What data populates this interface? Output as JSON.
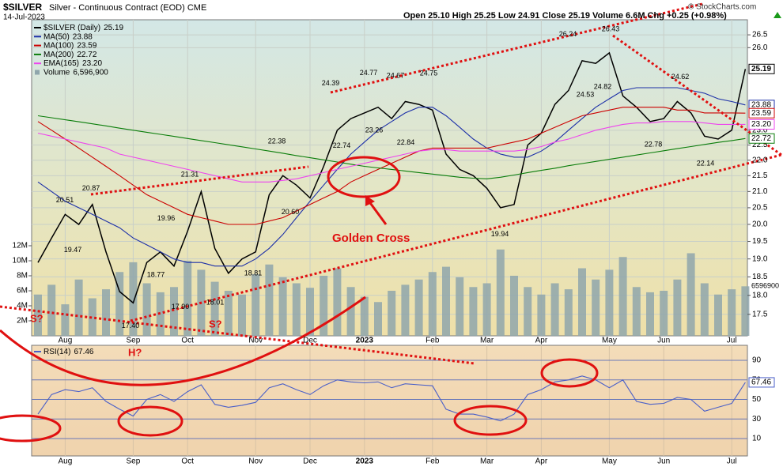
{
  "chart_data": [
    {
      "type": "line",
      "title": "$SILVER",
      "subtitle": "Silver - Continuous Contract (EOD) CME",
      "date": "14-Jul-2023",
      "quote": "Open 25.10  High 25.25  Low 24.91  Close 25.19  Volume 6.6M  Chg +0.25 (+0.98%)",
      "credit": "© StockCharts.com",
      "log_scale": true,
      "grid": true,
      "categories": [
        null,
        null,
        "Aug",
        null,
        null,
        null,
        null,
        "Sep",
        null,
        null,
        null,
        "Oct",
        null,
        null,
        null,
        null,
        "Nov",
        null,
        null,
        null,
        "Dec",
        null,
        null,
        null,
        "2023",
        null,
        null,
        null,
        null,
        "Feb",
        null,
        null,
        null,
        "Mar",
        null,
        null,
        null,
        "Apr",
        null,
        null,
        null,
        null,
        "May",
        null,
        null,
        null,
        "Jun",
        null,
        null,
        null,
        null,
        "Jul",
        null
      ],
      "ylim": [
        16.95,
        27.1
      ],
      "yticks": [
        17.5,
        {
          "value": 18,
          "label": "18.0"
        },
        18.5,
        {
          "value": 19,
          "label": "19.0"
        },
        19.5,
        {
          "value": 20,
          "label": "20.0"
        },
        20.5,
        {
          "value": 21,
          "label": "21.0"
        },
        21.5,
        {
          "value": 22,
          "label": "22.0"
        },
        22.5,
        {
          "value": 23,
          "label": "23.0"
        },
        {
          "value": 26,
          "label": "26.0"
        },
        26.5
      ],
      "y2lim": [
        0,
        42100000
      ],
      "y2ticks": [
        {
          "value": 2000000,
          "label": "2M"
        },
        {
          "value": 4000000,
          "label": "4M"
        },
        {
          "value": 6000000,
          "label": "6M"
        },
        {
          "value": 8000000,
          "label": "8M"
        },
        {
          "value": 10000000,
          "label": "10M"
        },
        {
          "value": 12000000,
          "label": "12M"
        }
      ],
      "series": [
        {
          "name": "$SILVER (Daily)",
          "last_label": "25.19",
          "color": "#000000",
          "values": [
            18.9,
            19.6,
            20.3,
            20.0,
            20.6,
            19.2,
            18.1,
            17.8,
            18.9,
            19.2,
            18.8,
            19.8,
            21.0,
            19.3,
            18.6,
            19.0,
            19.2,
            20.9,
            21.5,
            21.2,
            20.8,
            21.8,
            23.0,
            23.4,
            23.6,
            23.8,
            23.4,
            24.0,
            23.9,
            23.7,
            22.2,
            21.7,
            21.5,
            21.1,
            20.5,
            20.6,
            22.5,
            22.9,
            23.9,
            24.4,
            25.5,
            25.4,
            25.8,
            24.2,
            23.8,
            23.3,
            23.4,
            24.0,
            23.6,
            22.8,
            22.7,
            23.0,
            25.19
          ]
        },
        {
          "name": "MA(50)",
          "last_label": "23.88",
          "color": "#1c2fa8",
          "values": [
            21.3,
            21.0,
            20.7,
            20.5,
            20.3,
            20.1,
            19.9,
            19.6,
            19.4,
            19.2,
            19.0,
            18.9,
            18.9,
            18.8,
            18.8,
            18.8,
            19.0,
            19.3,
            19.7,
            20.2,
            20.7,
            21.2,
            21.7,
            22.2,
            22.6,
            23.0,
            23.3,
            23.6,
            23.8,
            23.8,
            23.5,
            23.1,
            22.7,
            22.4,
            22.2,
            22.1,
            22.1,
            22.3,
            22.6,
            23.0,
            23.4,
            23.8,
            24.1,
            24.4,
            24.5,
            24.5,
            24.5,
            24.5,
            24.4,
            24.3,
            24.1,
            24.0,
            23.88
          ]
        },
        {
          "name": "MA(100)",
          "last_label": "23.59",
          "color": "#cc0000",
          "values": [
            23.3,
            23.0,
            22.7,
            22.4,
            22.1,
            21.8,
            21.5,
            21.2,
            20.9,
            20.7,
            20.5,
            20.3,
            20.2,
            20.1,
            20.0,
            20.0,
            20.0,
            20.1,
            20.2,
            20.4,
            20.6,
            20.8,
            21.0,
            21.3,
            21.5,
            21.7,
            21.9,
            22.1,
            22.3,
            22.4,
            22.4,
            22.4,
            22.4,
            22.4,
            22.5,
            22.6,
            22.7,
            22.9,
            23.1,
            23.3,
            23.5,
            23.6,
            23.7,
            23.8,
            23.8,
            23.8,
            23.8,
            23.7,
            23.7,
            23.6,
            23.6,
            23.6,
            23.59
          ]
        },
        {
          "name": "MA(200)",
          "last_label": "22.72",
          "color": "#0a7d0a",
          "values": [
            23.5,
            23.43,
            23.36,
            23.29,
            23.22,
            23.15,
            23.07,
            23.0,
            22.93,
            22.86,
            22.79,
            22.72,
            22.65,
            22.58,
            22.51,
            22.44,
            22.37,
            22.3,
            22.23,
            22.15,
            22.08,
            22.01,
            21.94,
            21.87,
            21.8,
            21.75,
            21.7,
            21.65,
            21.6,
            21.55,
            21.5,
            21.45,
            21.42,
            21.4,
            21.45,
            21.52,
            21.6,
            21.67,
            21.74,
            21.82,
            21.89,
            21.96,
            22.03,
            22.1,
            22.17,
            22.24,
            22.31,
            22.38,
            22.45,
            22.52,
            22.59,
            22.65,
            22.72
          ]
        },
        {
          "name": "EMA(165)",
          "last_label": "23.20",
          "color": "#ee44ee",
          "values": [
            22.9,
            22.8,
            22.7,
            22.6,
            22.5,
            22.4,
            22.2,
            22.1,
            22.0,
            21.9,
            21.8,
            21.7,
            21.6,
            21.5,
            21.4,
            21.3,
            21.3,
            21.3,
            21.35,
            21.4,
            21.5,
            21.6,
            21.7,
            21.8,
            21.9,
            22.0,
            22.1,
            22.2,
            22.3,
            22.35,
            22.35,
            22.3,
            22.3,
            22.3,
            22.3,
            22.3,
            22.35,
            22.45,
            22.6,
            22.7,
            22.85,
            23.0,
            23.1,
            23.2,
            23.25,
            23.25,
            23.3,
            23.3,
            23.3,
            23.25,
            23.2,
            23.2,
            23.2
          ]
        },
        {
          "name": "Volume",
          "last_label": "6,596,900",
          "color": "#8fa6ac",
          "type": "bar",
          "axis": "y2",
          "values": [
            5500000,
            6800000,
            4200000,
            7500000,
            5000000,
            6200000,
            8500000,
            9800000,
            7000000,
            5800000,
            6500000,
            10000000,
            8800000,
            7200000,
            6000000,
            5500000,
            8200000,
            9500000,
            7800000,
            7000000,
            6400000,
            8000000,
            9000000,
            6500000,
            5200000,
            4500000,
            6000000,
            6800000,
            7500000,
            8500000,
            9200000,
            7800000,
            6500000,
            7000000,
            11500000,
            8000000,
            6500000,
            5500000,
            7000000,
            6200000,
            9000000,
            7500000,
            8800000,
            10500000,
            6500000,
            5800000,
            6000000,
            7500000,
            11000000,
            7000000,
            5500000,
            6200000,
            6596900
          ]
        }
      ],
      "peak_labels": [
        {
          "value": 20.51,
          "label": "20.51"
        },
        {
          "value": 20.87,
          "label": "20.87"
        },
        {
          "value": 19.47,
          "label": "19.47"
        },
        {
          "value": 17.4,
          "label": "17.40"
        },
        {
          "value": 19.96,
          "label": "19.96"
        },
        {
          "value": 21.31,
          "label": "21.31"
        },
        {
          "value": 18.77,
          "label": "18.77"
        },
        {
          "value": 17.9,
          "label": "17.90"
        },
        {
          "value": 18.01,
          "label": "18.01"
        },
        {
          "value": 22.38,
          "label": "22.38"
        },
        {
          "value": 20.6,
          "label": "20.60"
        },
        {
          "value": 18.81,
          "label": "18.81"
        },
        {
          "value": 24.39,
          "label": "24.39"
        },
        {
          "value": 22.74,
          "label": "22.74"
        },
        {
          "value": 24.77,
          "label": "24.77"
        },
        {
          "value": 23.26,
          "label": "23.26"
        },
        {
          "value": 24.67,
          "label": "24.67"
        },
        {
          "value": 22.84,
          "label": "22.84"
        },
        {
          "value": 24.75,
          "label": "24.75"
        },
        {
          "value": 19.94,
          "label": "19.94"
        },
        {
          "value": 26.24,
          "label": "26.24"
        },
        {
          "value": 24.53,
          "label": "24.53"
        },
        {
          "value": 24.82,
          "label": "24.82"
        },
        {
          "value": 26.43,
          "label": "26.43"
        },
        {
          "value": 24.62,
          "label": "24.62"
        },
        {
          "value": 22.78,
          "label": "22.78"
        },
        {
          "value": 22.14,
          "label": "22.14"
        }
      ],
      "annotations": {
        "golden_cross": "Golden Cross",
        "h": "H?",
        "s1": "S?",
        "s2": "S?"
      }
    },
    {
      "type": "line",
      "ylim": [
        -7.8,
        105.4
      ],
      "yticks": [
        10,
        30,
        50,
        70,
        90
      ],
      "series": [
        {
          "name": "RSI(14)",
          "last_label": "67.46",
          "color": "#4a5fc8",
          "values": [
            35,
            55,
            60,
            58,
            62,
            48,
            40,
            33,
            50,
            55,
            48,
            58,
            65,
            45,
            42,
            44,
            47,
            62,
            66,
            60,
            55,
            64,
            70,
            68,
            67,
            68,
            62,
            66,
            65,
            64,
            40,
            35,
            35,
            32,
            28,
            35,
            55,
            60,
            68,
            70,
            74,
            70,
            62,
            70,
            48,
            45,
            46,
            52,
            50,
            38,
            42,
            46,
            67.46
          ]
        }
      ]
    }
  ]
}
